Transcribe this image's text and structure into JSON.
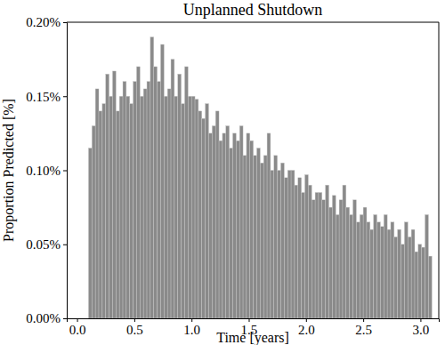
{
  "chart_data": {
    "type": "histogram",
    "title": "Unplanned Shutdown",
    "x_label": "Time [years]",
    "y_label": "Proportion Predicted [%]",
    "bins": [
      0.1,
      0.13,
      0.16,
      0.19,
      0.22,
      0.25,
      0.28,
      0.31,
      0.34,
      0.37,
      0.4,
      0.43,
      0.46,
      0.49,
      0.52,
      0.55,
      0.58,
      0.61,
      0.64,
      0.67,
      0.7,
      0.73,
      0.76,
      0.79,
      0.82,
      0.85,
      0.88,
      0.91,
      0.94,
      0.97,
      1.0,
      1.03,
      1.06,
      1.09,
      1.12,
      1.15,
      1.18,
      1.21,
      1.24,
      1.27,
      1.3,
      1.33,
      1.36,
      1.39,
      1.42,
      1.45,
      1.48,
      1.51,
      1.54,
      1.57,
      1.6,
      1.63,
      1.66,
      1.69,
      1.72,
      1.75,
      1.78,
      1.81,
      1.84,
      1.87,
      1.9,
      1.93,
      1.96,
      1.99,
      2.02,
      2.05,
      2.08,
      2.11,
      2.14,
      2.17,
      2.2,
      2.23,
      2.26,
      2.29,
      2.32,
      2.35,
      2.38,
      2.41,
      2.44,
      2.47,
      2.5,
      2.53,
      2.56,
      2.59,
      2.62,
      2.65,
      2.68,
      2.71,
      2.74,
      2.77,
      2.8,
      2.83,
      2.86,
      2.89,
      2.92,
      2.95,
      2.98,
      3.01,
      3.04,
      3.07,
      3.1
    ],
    "values": [
      0.115,
      0.13,
      0.155,
      0.14,
      0.145,
      0.165,
      0.15,
      0.167,
      0.14,
      0.15,
      0.16,
      0.15,
      0.145,
      0.16,
      0.17,
      0.15,
      0.155,
      0.16,
      0.19,
      0.17,
      0.16,
      0.185,
      0.15,
      0.155,
      0.175,
      0.15,
      0.165,
      0.145,
      0.17,
      0.15,
      0.15,
      0.148,
      0.14,
      0.135,
      0.145,
      0.125,
      0.13,
      0.14,
      0.12,
      0.125,
      0.13,
      0.115,
      0.125,
      0.12,
      0.13,
      0.11,
      0.125,
      0.12,
      0.11,
      0.115,
      0.105,
      0.11,
      0.125,
      0.1,
      0.11,
      0.1,
      0.105,
      0.095,
      0.1,
      0.1,
      0.09,
      0.095,
      0.085,
      0.097,
      0.09,
      0.08,
      0.085,
      0.085,
      0.08,
      0.09,
      0.075,
      0.083,
      0.07,
      0.08,
      0.09,
      0.075,
      0.07,
      0.08,
      0.065,
      0.07,
      0.075,
      0.065,
      0.06,
      0.07,
      0.065,
      0.062,
      0.07,
      0.06,
      0.065,
      0.055,
      0.06,
      0.05,
      0.065,
      0.055,
      0.06,
      0.045,
      0.05,
      0.048,
      0.07,
      0.042
    ],
    "color": "#8a8a8a",
    "xlim": [
      -0.09,
      3.16
    ],
    "ylim": [
      0,
      0.2
    ],
    "xticks": [
      {
        "value": 0,
        "label": "0.0"
      },
      0.5,
      {
        "value": 1,
        "label": "1.0"
      },
      1.5,
      {
        "value": 2,
        "label": "2.0"
      },
      2.5,
      {
        "value": 3,
        "label": "3.0"
      }
    ],
    "yticks": [
      {
        "value": 0,
        "label": "0.00%"
      },
      {
        "value": 0.05,
        "label": "0.05%"
      },
      {
        "value": 0.1,
        "label": "0.10%"
      },
      {
        "value": 0.15,
        "label": "0.15%"
      },
      {
        "value": 0.2,
        "label": "0.20%"
      }
    ],
    "grid": false
  }
}
